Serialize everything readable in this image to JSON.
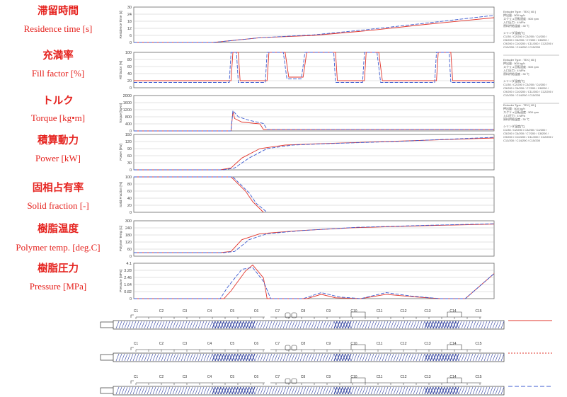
{
  "left_labels": [
    {
      "jp": "滞留時間",
      "en": "Residence time [s]"
    },
    {
      "jp": "充満率",
      "en": "Fill factor [%]"
    },
    {
      "jp": "トルク",
      "en": "Torque [kg•m]"
    },
    {
      "jp": "積算動力",
      "en": "Power [kW]"
    },
    {
      "jp": "固相占有率",
      "en": "Solid fraction [-]"
    },
    {
      "jp": "樹脂温度",
      "en": "Polymer temp. [deg.C]"
    },
    {
      "jp": "樹脂圧力",
      "en": "Pressure [MPa]"
    }
  ],
  "chart_data": [
    {
      "type": "line",
      "ylabel": "Residence Time [s]",
      "yticks": [
        "30",
        "24",
        "18",
        "12",
        "6",
        "0"
      ],
      "series": [
        {
          "x": [
            0,
            0.22,
            0.35,
            0.5,
            0.65,
            0.8,
            1.0
          ],
          "y": [
            0,
            0,
            4,
            6,
            10,
            15,
            21
          ]
        },
        {
          "x": [
            0,
            0.22,
            0.35,
            0.5,
            0.65,
            0.8,
            1.0
          ],
          "y": [
            0,
            0,
            4,
            6.5,
            11,
            16,
            23
          ]
        }
      ]
    },
    {
      "type": "line",
      "ylabel": "Fill factor [%]",
      "yticks": [
        "100",
        "80",
        "60",
        "40",
        "20",
        "0"
      ],
      "series": [
        {
          "x": [
            0.0,
            0.27,
            0.275,
            0.29,
            0.295,
            0.37,
            0.375,
            0.42,
            0.43,
            0.47,
            0.48,
            0.56,
            0.565,
            0.64,
            0.645,
            0.68,
            0.69,
            0.84,
            0.845,
            0.88,
            0.885,
            1.0
          ],
          "y": [
            20,
            20,
            100,
            100,
            20,
            20,
            100,
            100,
            30,
            30,
            100,
            100,
            20,
            20,
            100,
            100,
            20,
            20,
            100,
            100,
            20,
            20
          ]
        },
        {
          "x": [
            0.0,
            0.265,
            0.27,
            0.285,
            0.29,
            0.365,
            0.37,
            0.415,
            0.425,
            0.465,
            0.475,
            0.555,
            0.56,
            0.635,
            0.64,
            0.675,
            0.685,
            0.835,
            0.84,
            0.875,
            0.88,
            1.0
          ],
          "y": [
            15,
            15,
            100,
            100,
            15,
            15,
            100,
            100,
            25,
            25,
            100,
            100,
            15,
            15,
            100,
            100,
            15,
            15,
            100,
            100,
            15,
            15
          ]
        }
      ]
    },
    {
      "type": "line",
      "ylabel": "Torque [kg•m]",
      "yticks": [
        "2000",
        "1600",
        "1200",
        "800",
        "400",
        "0"
      ],
      "series": [
        {
          "x": [
            0,
            0.27,
            0.275,
            0.28,
            0.3,
            0.35,
            0.36,
            0.5,
            0.7,
            1.0
          ],
          "y": [
            0,
            0,
            1100,
            700,
            500,
            400,
            80,
            80,
            80,
            80
          ]
        },
        {
          "x": [
            0,
            0.27,
            0.275,
            0.29,
            0.32,
            0.36,
            0.37,
            0.5,
            0.7,
            1.0
          ],
          "y": [
            0,
            0,
            1150,
            800,
            600,
            420,
            90,
            90,
            90,
            90
          ]
        }
      ]
    },
    {
      "type": "line",
      "ylabel": "Power [kW]",
      "yticks": [
        "150",
        "120",
        "90",
        "60",
        "30",
        "0"
      ],
      "series": [
        {
          "x": [
            0,
            0.24,
            0.27,
            0.3,
            0.35,
            0.42,
            0.5,
            0.7,
            1.0
          ],
          "y": [
            0,
            0,
            8,
            50,
            90,
            105,
            110,
            120,
            135
          ]
        },
        {
          "x": [
            0,
            0.25,
            0.28,
            0.32,
            0.37,
            0.44,
            0.52,
            0.72,
            1.0
          ],
          "y": [
            0,
            0,
            8,
            50,
            90,
            105,
            110,
            120,
            138
          ]
        }
      ]
    },
    {
      "type": "line",
      "ylabel": "Solid Fraction [%]",
      "yticks": [
        "100",
        "80",
        "60",
        "40",
        "20",
        "0"
      ],
      "series": [
        {
          "x": [
            0,
            0.27,
            0.31,
            0.33,
            0.36
          ],
          "y": [
            100,
            100,
            60,
            30,
            0
          ]
        },
        {
          "x": [
            0,
            0.275,
            0.32,
            0.34,
            0.37
          ],
          "y": [
            100,
            100,
            55,
            25,
            0
          ]
        }
      ]
    },
    {
      "type": "line",
      "ylabel": "Polymer Temp [C]",
      "yticks": [
        "300",
        "240",
        "180",
        "120",
        "60",
        "0"
      ],
      "series": [
        {
          "x": [
            0,
            0.24,
            0.27,
            0.3,
            0.35,
            0.45,
            0.6,
            0.8,
            1.0
          ],
          "y": [
            30,
            30,
            40,
            140,
            190,
            215,
            240,
            258,
            272
          ]
        },
        {
          "x": [
            0,
            0.25,
            0.28,
            0.32,
            0.37,
            0.47,
            0.62,
            0.82,
            1.0
          ],
          "y": [
            30,
            30,
            40,
            140,
            190,
            218,
            245,
            262,
            275
          ]
        }
      ]
    },
    {
      "type": "line",
      "ylabel": "Pressure [MPa]",
      "yticks": [
        "4.1",
        "3.28",
        "2.46",
        "1.64",
        "0.82",
        "0"
      ],
      "series": [
        {
          "x": [
            0,
            0.25,
            0.27,
            0.31,
            0.33,
            0.36,
            0.37,
            0.48,
            0.52,
            0.56,
            0.63,
            0.7,
            0.78,
            0.85,
            0.92,
            1.0
          ],
          "y": [
            0,
            0,
            0.9,
            3.2,
            3.9,
            2.4,
            0,
            0,
            0.5,
            0.1,
            0,
            0.5,
            0.2,
            0,
            0,
            2.9
          ]
        },
        {
          "x": [
            0,
            0.24,
            0.26,
            0.3,
            0.33,
            0.36,
            0.38,
            0.47,
            0.52,
            0.57,
            0.63,
            0.7,
            0.77,
            0.85,
            0.92,
            1.0
          ],
          "y": [
            0,
            0,
            1.3,
            3.4,
            3.6,
            2.0,
            0,
            0,
            0.7,
            0.2,
            0,
            0.7,
            0.3,
            0,
            0,
            2.9
          ]
        }
      ]
    }
  ],
  "legends": [
    {
      "lines": [
        "Extruder Type : TEX [ 65 ]",
        "押出量 : 500 kg/h",
        "スクリュ回転速度 : 500 rpm",
        "入口圧力 : 4 MPa",
        "原料供給温度 : 30 ℃",
        "",
        "シリンダ温度[℃]",
        "C1/30 / C2/200 / C3/200 / C4/200 /",
        "C5/200 / C6/200 / C7/200 / C8/200 /",
        "C9/200 / C10/200 / C11/200 / C12/200 /",
        "C13/200 / C14/200 / C15/200"
      ]
    },
    {
      "lines": [
        "Extruder Type : TEX [ 65 ]",
        "押出量 : 500 kg/h",
        "スクリュ回転速度 : 500 rpm",
        "入口圧力 : 4 MPa",
        "原料供給温度 : 30 ℃",
        "",
        "シリンダ温度[℃]",
        "C1/30 / C2/200 / C3/200 / C4/200 /",
        "C5/200 / C6/200 / C7/200 / C8/200 /",
        "C9/200 / C10/200 / C11/200 / C12/200 /",
        "C13/200 / C14/200 / C15/200"
      ]
    },
    {
      "lines": [
        "Extruder Type : TEX [ 65 ]",
        "押出量 : 500 kg/h",
        "スクリュ回転速度 : 500 rpm",
        "入口圧力 : 4 MPa",
        "原料供給温度 : 30 ℃",
        "",
        "シリンダ温度[℃]",
        "C1/30 / C2/200 / C3/200 / C4/200 /",
        "C5/200 / C6/200 / C7/200 / C8/200 /",
        "C9/200 / C10/200 / C11/200 / C12/200 /",
        "C13/200 / C14/200 / C15/200"
      ]
    }
  ],
  "zones": [
    "C1",
    "C2",
    "C3",
    "C4",
    "C5",
    "C6",
    "C7",
    "C8",
    "C9",
    "C10",
    "C11",
    "C12",
    "C13",
    "C14",
    "C15"
  ],
  "colors": {
    "red": "#e2342b",
    "blue": "#3c5bd0",
    "grid": "#b8b8b8",
    "frame": "#666666",
    "hatch": "#2e3f9e"
  }
}
